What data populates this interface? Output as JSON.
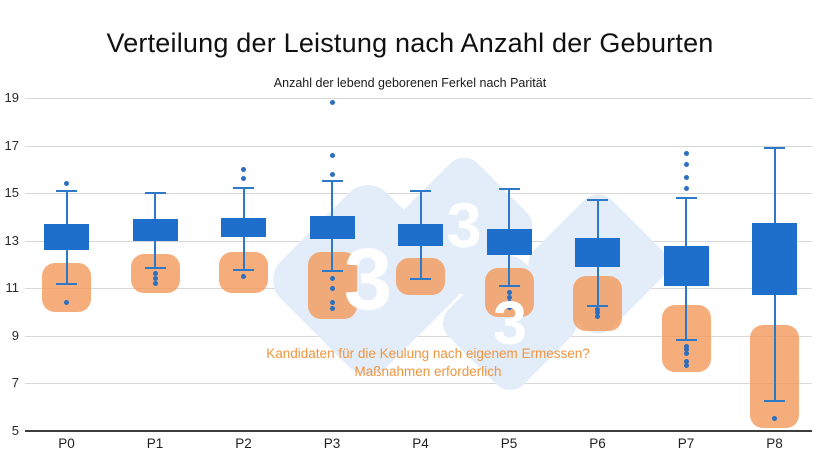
{
  "page": {
    "title": "Verteilung der Leistung nach Anzahl der Geburten",
    "subtitle": "Anzahl der lebend geborenen Ferkel nach Parität"
  },
  "chart_data": {
    "type": "boxplot",
    "title": "Verteilung der Leistung nach Anzahl der Geburten",
    "subtitle": "Anzahl der lebend geborenen Ferkel nach Parität",
    "xlabel": "",
    "ylabel": "",
    "x_categories": [
      "P0",
      "P1",
      "P2",
      "P3",
      "P4",
      "P5",
      "P6",
      "P7",
      "P8"
    ],
    "y_ticks": [
      19,
      17,
      15,
      13,
      11,
      9,
      7,
      5
    ],
    "ylim": [
      5,
      19.6
    ],
    "grid": "horizontal-only",
    "legend": "none",
    "notes": "Solid blue boxes without visible median line; translucent orange rounded rectangles mark a low-performance attention zone per parity; blue dots are outliers.",
    "series": [
      {
        "label": "P0",
        "whisker_low": 11.15,
        "q1": 12.6,
        "q3": 13.7,
        "whisker_high": 15.1,
        "outliers_above": [
          15.4
        ],
        "outliers_below": [
          10.4
        ],
        "attention_zone": {
          "top": 12.05,
          "bottom": 10.0
        }
      },
      {
        "label": "P1",
        "whisker_low": 11.85,
        "q1": 13.0,
        "q3": 13.9,
        "whisker_high": 15.0,
        "outliers_above": [],
        "outliers_below": [
          11.6,
          11.4,
          11.2
        ],
        "attention_zone": {
          "top": 12.45,
          "bottom": 10.8
        }
      },
      {
        "label": "P2",
        "whisker_low": 11.75,
        "q1": 13.15,
        "q3": 13.95,
        "whisker_high": 15.2,
        "outliers_above": [
          16.0,
          15.6
        ],
        "outliers_below": [
          11.5
        ],
        "attention_zone": {
          "top": 12.5,
          "bottom": 10.8
        }
      },
      {
        "label": "P3",
        "whisker_low": 11.7,
        "q1": 13.05,
        "q3": 14.05,
        "whisker_high": 15.5,
        "outliers_above": [
          18.8,
          16.6,
          15.8
        ],
        "outliers_below": [
          11.4,
          11.0,
          10.4,
          10.15
        ],
        "attention_zone": {
          "top": 12.5,
          "bottom": 9.7
        }
      },
      {
        "label": "P4",
        "whisker_low": 11.4,
        "q1": 12.75,
        "q3": 13.7,
        "whisker_high": 15.1,
        "outliers_above": [],
        "outliers_below": [],
        "attention_zone": {
          "top": 12.25,
          "bottom": 10.7
        }
      },
      {
        "label": "P5",
        "whisker_low": 11.1,
        "q1": 12.4,
        "q3": 13.5,
        "whisker_high": 15.15,
        "outliers_above": [],
        "outliers_below": [
          10.8,
          10.6,
          10.4,
          10.2
        ],
        "attention_zone": {
          "top": 11.85,
          "bottom": 9.8
        }
      },
      {
        "label": "P6",
        "whisker_low": 10.25,
        "q1": 11.9,
        "q3": 13.1,
        "whisker_high": 14.7,
        "outliers_above": [],
        "outliers_below": [
          10.1,
          9.95,
          9.8
        ],
        "attention_zone": {
          "top": 11.5,
          "bottom": 9.2
        }
      },
      {
        "label": "P7",
        "whisker_low": 8.8,
        "q1": 11.1,
        "q3": 12.75,
        "whisker_high": 14.8,
        "outliers_above": [
          16.65,
          16.2,
          15.65,
          15.2
        ],
        "outliers_below": [
          8.55,
          8.4,
          8.25,
          7.9,
          7.75
        ],
        "attention_zone": {
          "top": 10.3,
          "bottom": 7.45
        }
      },
      {
        "label": "P8",
        "whisker_low": 6.25,
        "q1": 10.7,
        "q3": 13.75,
        "whisker_high": 16.9,
        "outliers_above": [],
        "outliers_below": [
          5.5
        ],
        "attention_zone": {
          "top": 9.45,
          "bottom": 5.1
        }
      }
    ],
    "annotation": {
      "line1": "Kandidaten für die Keulung nach eigenem Ermessen?",
      "line2": "Maßnahmen erforderlich"
    },
    "watermark": {
      "text": "333",
      "digits": [
        "3",
        "3",
        "3"
      ]
    },
    "colors": {
      "box_fill": "#1e6fcc",
      "whisker": "#2e78c8",
      "outlier": "#2b6fc0",
      "attention_fill": "rgba(242,153,90,0.8)",
      "annotation_text": "#f0953f",
      "watermark_fill": "#e3edf9",
      "gridline": "#d8d8d8",
      "axis_line": "#3d3d3d",
      "title_text": "#111111"
    }
  }
}
